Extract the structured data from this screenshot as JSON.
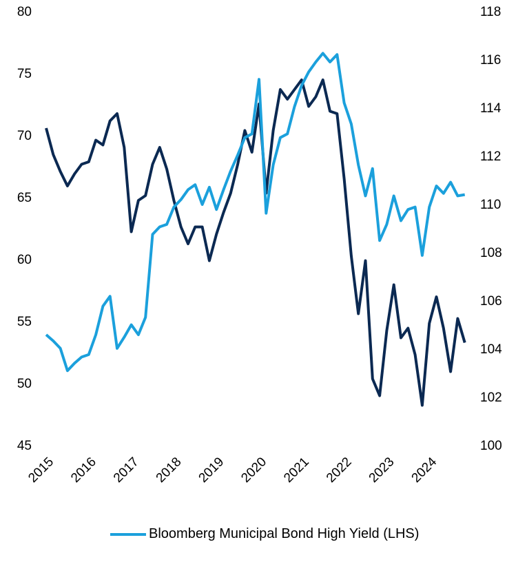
{
  "chart_data": {
    "type": "line",
    "categories": [
      "2015",
      null,
      null,
      null,
      null,
      null,
      "2016",
      null,
      null,
      null,
      null,
      null,
      "2017",
      null,
      null,
      null,
      null,
      null,
      "2018",
      null,
      null,
      null,
      null,
      null,
      "2019",
      null,
      null,
      null,
      null,
      null,
      "2020",
      null,
      null,
      null,
      null,
      null,
      "2021",
      null,
      null,
      null,
      null,
      null,
      "2022",
      null,
      null,
      null,
      null,
      null,
      "2023",
      null,
      null,
      null,
      null,
      null,
      "2024",
      null,
      null,
      null,
      null,
      null
    ],
    "series": [
      {
        "name": "Bloomberg Municipal Bond High Yield (LHS)",
        "color": "#1ba0dc",
        "axis": "y",
        "values": [
          54.0,
          53.5,
          52.9,
          51.1,
          51.7,
          52.2,
          52.4,
          54.0,
          56.3,
          57.1,
          52.9,
          53.8,
          54.8,
          54.0,
          55.4,
          62.1,
          62.7,
          62.9,
          64.3,
          64.9,
          65.7,
          66.1,
          64.5,
          65.9,
          64.1,
          65.7,
          67.2,
          68.5,
          69.9,
          70.2,
          74.6,
          63.8,
          67.7,
          69.9,
          70.2,
          72.4,
          74.1,
          75.2,
          76.0,
          76.7,
          76.0,
          76.6,
          72.7,
          71.0,
          67.7,
          65.2,
          67.4,
          61.6,
          62.9,
          65.2,
          63.2,
          64.1,
          64.3,
          60.4,
          64.3,
          66.0,
          65.4,
          66.3,
          65.2,
          65.3
        ]
      },
      {
        "color": "#0b2952",
        "axis": "y2",
        "values": [
          113.2,
          112.1,
          111.4,
          110.8,
          111.3,
          111.7,
          111.8,
          112.7,
          112.5,
          113.5,
          113.8,
          112.4,
          108.9,
          110.2,
          110.4,
          111.7,
          112.4,
          111.5,
          110.2,
          109.1,
          108.4,
          109.1,
          109.1,
          107.7,
          108.8,
          109.7,
          110.5,
          111.7,
          113.1,
          112.2,
          114.2,
          110.5,
          113.1,
          114.8,
          114.4,
          114.8,
          115.2,
          114.1,
          114.5,
          115.2,
          113.9,
          113.8,
          111.1,
          107.9,
          105.5,
          107.7,
          102.8,
          102.1,
          104.8,
          106.7,
          104.5,
          104.9,
          103.8,
          101.7,
          105.1,
          106.2,
          104.9,
          103.1,
          105.3,
          104.3
        ]
      }
    ],
    "ylim": [
      45,
      80
    ],
    "yticks": [
      45,
      50,
      55,
      60,
      65,
      70,
      75,
      80
    ],
    "y2lim": [
      100,
      118
    ],
    "y2ticks": [
      100,
      102,
      104,
      106,
      108,
      110,
      112,
      114,
      116,
      118
    ],
    "grid": false
  }
}
